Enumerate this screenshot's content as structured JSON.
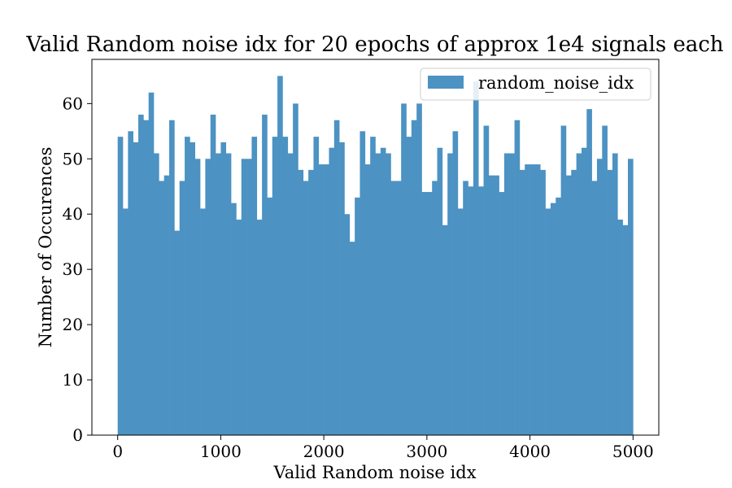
{
  "chart_data": {
    "type": "bar",
    "title": "Valid Random noise idx for 20 epochs of approx 1e4 signals each",
    "xlabel": "Valid Random noise idx",
    "ylabel": "Number of Occurences",
    "xlim": [
      -250,
      5250
    ],
    "ylim": [
      0,
      68
    ],
    "xticks": [
      0,
      1000,
      2000,
      3000,
      4000,
      5000
    ],
    "xtick_labels": [
      "0",
      "1000",
      "2000",
      "3000",
      "4000",
      "5000"
    ],
    "yticks": [
      0,
      10,
      20,
      30,
      40,
      50,
      60
    ],
    "ytick_labels": [
      "0",
      "10",
      "20",
      "30",
      "40",
      "50",
      "60"
    ],
    "bin_start": 0,
    "bin_width": 50,
    "legend": {
      "position": "top-right"
    },
    "series": [
      {
        "name": "random_noise_idx",
        "color": "#4c92c3",
        "values": [
          54,
          41,
          55,
          53,
          58,
          57,
          62,
          51,
          46,
          47,
          57,
          37,
          46,
          54,
          53,
          50,
          41,
          50,
          58,
          51,
          53,
          51,
          42,
          39,
          50,
          50,
          54,
          39,
          58,
          43,
          54,
          65,
          54,
          51,
          60,
          48,
          46,
          48,
          54,
          49,
          49,
          52,
          57,
          53,
          40,
          35,
          43,
          55,
          49,
          54,
          51,
          52,
          51,
          46,
          46,
          60,
          54,
          57,
          60,
          44,
          44,
          46,
          52,
          38,
          51,
          55,
          41,
          46,
          45,
          64,
          45,
          56,
          47,
          47,
          44,
          51,
          51,
          57,
          48,
          49,
          49,
          49,
          48,
          41,
          42,
          43,
          56,
          47,
          48,
          51,
          52,
          59,
          46,
          50,
          56,
          48,
          51,
          39,
          38,
          50
        ]
      }
    ]
  }
}
